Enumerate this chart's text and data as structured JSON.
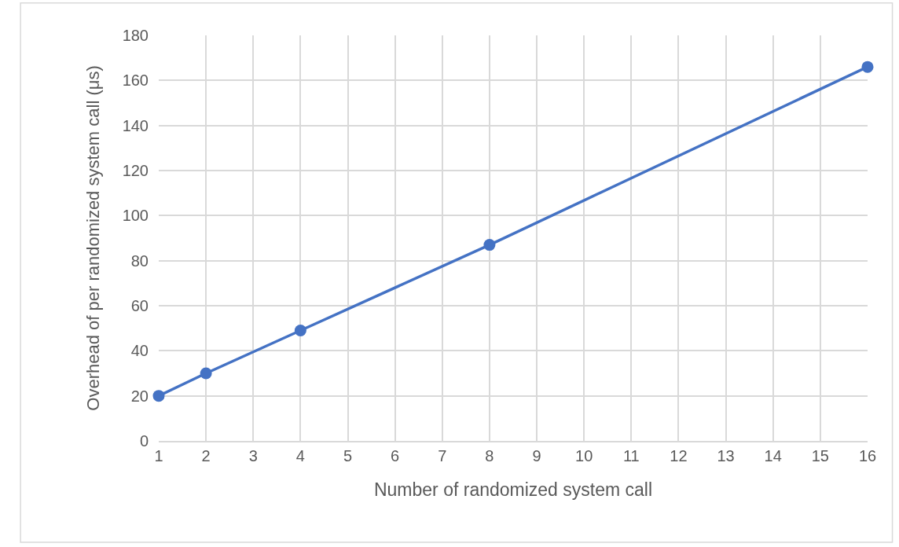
{
  "chart_data": {
    "type": "line",
    "xlabel": "Number of randomized system call",
    "ylabel": "Overhead of per randomized system call (μs)",
    "x": [
      1,
      2,
      4,
      8,
      16
    ],
    "series": [
      {
        "color": "#4472c4",
        "values": [
          20,
          30,
          49,
          87,
          166
        ]
      }
    ],
    "xlim": [
      1,
      16
    ],
    "xticks": [
      1,
      2,
      3,
      4,
      5,
      6,
      7,
      8,
      9,
      10,
      11,
      12,
      13,
      14,
      15,
      16
    ],
    "ylim": [
      0,
      180
    ],
    "yticks": [
      0,
      20,
      40,
      60,
      80,
      100,
      120,
      140,
      160,
      180
    ],
    "grid": true,
    "marker": "circle",
    "line_style": "solid"
  }
}
